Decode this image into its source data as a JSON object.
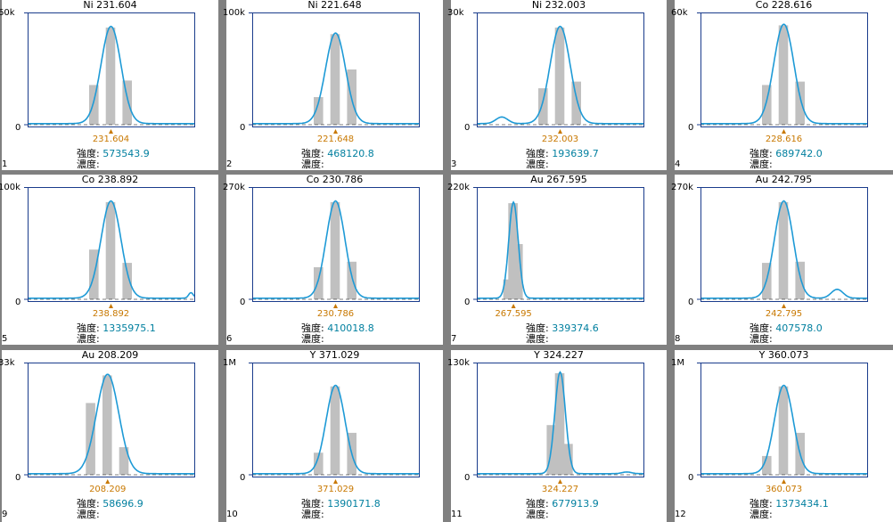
{
  "panels": [
    {
      "num": "1",
      "element": "Ni",
      "wavelength": "231.604",
      "ymax_label": "60k",
      "yzero_label": "0",
      "intensity_label": "強度:",
      "intensity_value": "573543.9",
      "conc_label": "濃度:",
      "conc_value": "",
      "peak_pos": 0.5,
      "peak_height": 0.88,
      "peak_width": 0.085,
      "bars": [
        0.36,
        0.88,
        0.4
      ],
      "bar_pos": [
        0.4,
        0.5,
        0.6
      ],
      "bumps": []
    },
    {
      "num": "2",
      "element": "Ni",
      "wavelength": "221.648",
      "ymax_label": "100k",
      "yzero_label": "0",
      "intensity_label": "強度:",
      "intensity_value": "468120.8",
      "conc_label": "濃度:",
      "conc_value": "",
      "peak_pos": 0.5,
      "peak_height": 0.82,
      "peak_width": 0.085,
      "bars": [
        0.25,
        0.82,
        0.5
      ],
      "bar_pos": [
        0.4,
        0.5,
        0.6
      ],
      "bumps": []
    },
    {
      "num": "3",
      "element": "Ni",
      "wavelength": "232.003",
      "ymax_label": "30k",
      "yzero_label": "0",
      "intensity_label": "強度:",
      "intensity_value": "193639.7",
      "conc_label": "濃度:",
      "conc_value": "",
      "peak_pos": 0.5,
      "peak_height": 0.88,
      "peak_width": 0.085,
      "bars": [
        0.33,
        0.88,
        0.39
      ],
      "bar_pos": [
        0.4,
        0.5,
        0.6
      ],
      "bumps": [
        {
          "pos": 0.15,
          "height": 0.06,
          "width": 0.05
        }
      ]
    },
    {
      "num": "4",
      "element": "Co",
      "wavelength": "228.616",
      "ymax_label": "60k",
      "yzero_label": "0",
      "intensity_label": "強度:",
      "intensity_value": "689742.0",
      "conc_label": "濃度:",
      "conc_value": "",
      "peak_pos": 0.5,
      "peak_height": 0.9,
      "peak_width": 0.085,
      "bars": [
        0.36,
        0.9,
        0.39
      ],
      "bar_pos": [
        0.4,
        0.5,
        0.6
      ],
      "bumps": []
    },
    {
      "num": "5",
      "element": "Co",
      "wavelength": "238.892",
      "ymax_label": "100k",
      "yzero_label": "0",
      "intensity_label": "強度:",
      "intensity_value": "1335975.1",
      "conc_label": "濃度:",
      "conc_value": "",
      "peak_pos": 0.5,
      "peak_height": 0.88,
      "peak_width": 0.085,
      "bars": [
        0.45,
        0.88,
        0.33
      ],
      "bar_pos": [
        0.4,
        0.5,
        0.6
      ],
      "bumps": [
        {
          "pos": 0.98,
          "height": 0.05,
          "width": 0.02
        }
      ]
    },
    {
      "num": "6",
      "element": "Co",
      "wavelength": "230.786",
      "ymax_label": "270k",
      "yzero_label": "0",
      "intensity_label": "強度:",
      "intensity_value": "410018.8",
      "conc_label": "濃度:",
      "conc_value": "",
      "peak_pos": 0.5,
      "peak_height": 0.88,
      "peak_width": 0.08,
      "bars": [
        0.29,
        0.88,
        0.34
      ],
      "bar_pos": [
        0.4,
        0.5,
        0.6
      ],
      "bumps": []
    },
    {
      "num": "7",
      "element": "Au",
      "wavelength": "267.595",
      "ymax_label": "220k",
      "yzero_label": "0",
      "intensity_label": "強度:",
      "intensity_value": "339374.6",
      "conc_label": "濃度:",
      "conc_value": "",
      "peak_pos": 0.22,
      "peak_height": 0.87,
      "peak_width": 0.04,
      "bars": [
        0.18,
        0.87,
        0.5
      ],
      "bar_pos": [
        0.19,
        0.22,
        0.25
      ],
      "bumps": []
    },
    {
      "num": "8",
      "element": "Au",
      "wavelength": "242.795",
      "ymax_label": "270k",
      "yzero_label": "0",
      "intensity_label": "強度:",
      "intensity_value": "407578.0",
      "conc_label": "濃度:",
      "conc_value": "",
      "peak_pos": 0.5,
      "peak_height": 0.88,
      "peak_width": 0.08,
      "bars": [
        0.33,
        0.88,
        0.34
      ],
      "bar_pos": [
        0.4,
        0.5,
        0.6
      ],
      "bumps": [
        {
          "pos": 0.82,
          "height": 0.08,
          "width": 0.05
        }
      ]
    },
    {
      "num": "9",
      "element": "Au",
      "wavelength": "208.209",
      "ymax_label": "33k",
      "yzero_label": "0",
      "intensity_label": "強度:",
      "intensity_value": "58696.9",
      "conc_label": "濃度:",
      "conc_value": "",
      "peak_pos": 0.48,
      "peak_height": 0.9,
      "peak_width": 0.095,
      "bars": [
        0.65,
        0.9,
        0.25
      ],
      "bar_pos": [
        0.38,
        0.48,
        0.58
      ],
      "bumps": []
    },
    {
      "num": "10",
      "element": "Y",
      "wavelength": "371.029",
      "ymax_label": "1M",
      "yzero_label": "0",
      "intensity_label": "強度:",
      "intensity_value": "1390171.8",
      "conc_label": "濃度:",
      "conc_value": "",
      "peak_pos": 0.5,
      "peak_height": 0.8,
      "peak_width": 0.08,
      "bars": [
        0.2,
        0.8,
        0.38
      ],
      "bar_pos": [
        0.4,
        0.5,
        0.6
      ],
      "bumps": []
    },
    {
      "num": "11",
      "element": "Y",
      "wavelength": "324.227",
      "ymax_label": "130k",
      "yzero_label": "0",
      "intensity_label": "強度:",
      "intensity_value": "677913.9",
      "conc_label": "濃度:",
      "conc_value": "",
      "peak_pos": 0.5,
      "peak_height": 0.92,
      "peak_width": 0.045,
      "bars": [
        0.45,
        0.92,
        0.28
      ],
      "bar_pos": [
        0.45,
        0.5,
        0.55
      ],
      "bumps": [
        {
          "pos": 0.9,
          "height": 0.015,
          "width": 0.04
        }
      ]
    },
    {
      "num": "12",
      "element": "Y",
      "wavelength": "360.073",
      "ymax_label": "1M",
      "yzero_label": "0",
      "intensity_label": "強度:",
      "intensity_value": "1373434.1",
      "conc_label": "濃度:",
      "conc_value": "",
      "peak_pos": 0.5,
      "peak_height": 0.8,
      "peak_width": 0.08,
      "bars": [
        0.17,
        0.8,
        0.38
      ],
      "bar_pos": [
        0.4,
        0.5,
        0.6
      ],
      "bumps": []
    }
  ],
  "colors": {
    "curve": "#1e9ad6",
    "bar": "#c0c0c0",
    "axis": "#1a3c8c",
    "marker": "#c87800",
    "intensity_value": "#007f9f",
    "background": "#808080",
    "panel": "#ffffff"
  }
}
